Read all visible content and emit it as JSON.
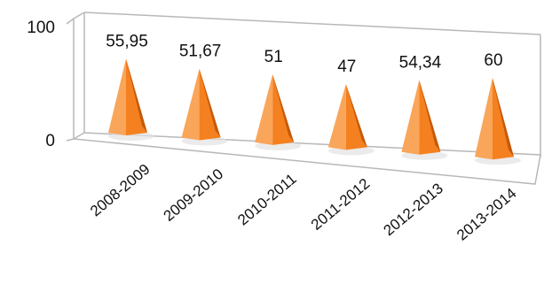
{
  "chart_data": {
    "type": "bar",
    "shape": "3d-pyramid",
    "categories": [
      "2008-2009",
      "2009-2010",
      "2010-2011",
      "2011-2012",
      "2012-2013",
      "2013-2014"
    ],
    "values": [
      55.95,
      51.67,
      51,
      47,
      54.34,
      60
    ],
    "data_labels": [
      "55,95",
      "51,67",
      "51",
      "47",
      "54,34",
      "60"
    ],
    "y_tick_labels": [
      "0",
      "100"
    ],
    "ylim": [
      0,
      100
    ],
    "grid": false,
    "legend": "none",
    "bar_color": "#f5801f",
    "bar_color_light": "#f9a55a",
    "bar_color_dark": "#c55a0b",
    "axis_color": "#b8b8b8"
  }
}
